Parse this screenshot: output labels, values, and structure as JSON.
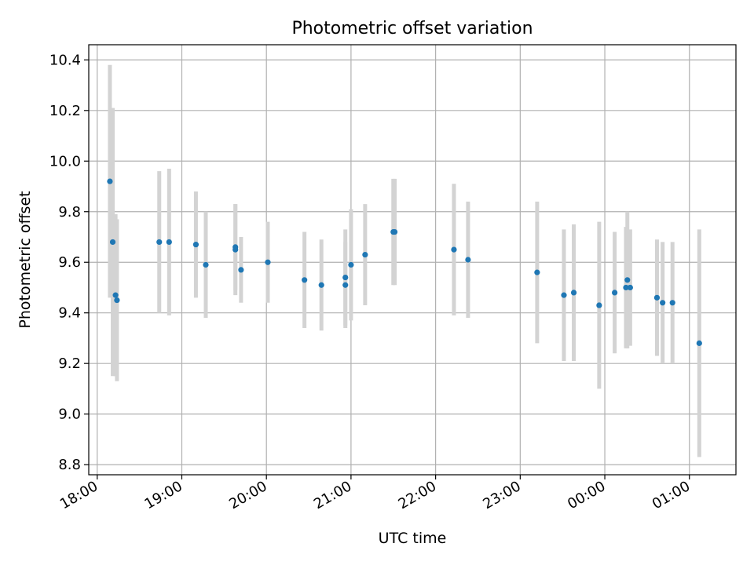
{
  "chart_data": {
    "type": "scatter",
    "title": "Photometric offset variation",
    "xlabel": "UTC time",
    "ylabel": "Photometric offset",
    "grid": true,
    "x_ticks": [
      "18:00",
      "19:00",
      "20:00",
      "21:00",
      "22:00",
      "23:00",
      "00:00",
      "01:00"
    ],
    "y_ticks": [
      "8.8",
      "9.0",
      "9.2",
      "9.4",
      "9.6",
      "9.8",
      "10.0",
      "10.2",
      "10.4"
    ],
    "xlim_hours": [
      17.9,
      25.55
    ],
    "ylim": [
      8.76,
      10.46
    ],
    "colors": {
      "points": "#1f77b4",
      "errorbars": "#d3d3d3",
      "grid": "#b0b0b0"
    },
    "points": [
      {
        "t": "18:09",
        "y": 9.92,
        "err": 0.46
      },
      {
        "t": "18:11",
        "y": 9.68,
        "err": 0.53
      },
      {
        "t": "18:13",
        "y": 9.47,
        "err": 0.32
      },
      {
        "t": "18:14",
        "y": 9.45,
        "err": 0.32
      },
      {
        "t": "18:44",
        "y": 9.68,
        "err": 0.28
      },
      {
        "t": "18:51",
        "y": 9.68,
        "err": 0.29
      },
      {
        "t": "19:10",
        "y": 9.67,
        "err": 0.21
      },
      {
        "t": "19:17",
        "y": 9.59,
        "err": 0.21
      },
      {
        "t": "19:38",
        "y": 9.65,
        "err": 0.18
      },
      {
        "t": "19:38",
        "y": 9.66,
        "err": 0.17
      },
      {
        "t": "19:42",
        "y": 9.57,
        "err": 0.13
      },
      {
        "t": "20:01",
        "y": 9.6,
        "err": 0.16
      },
      {
        "t": "20:27",
        "y": 9.53,
        "err": 0.19
      },
      {
        "t": "20:39",
        "y": 9.51,
        "err": 0.18
      },
      {
        "t": "20:56",
        "y": 9.54,
        "err": 0.19
      },
      {
        "t": "20:56",
        "y": 9.51,
        "err": 0.17
      },
      {
        "t": "21:00",
        "y": 9.59,
        "err": 0.22
      },
      {
        "t": "21:10",
        "y": 9.63,
        "err": 0.2
      },
      {
        "t": "21:30",
        "y": 9.72,
        "err": 0.21
      },
      {
        "t": "21:31",
        "y": 9.72,
        "err": 0.21
      },
      {
        "t": "22:13",
        "y": 9.65,
        "err": 0.26
      },
      {
        "t": "22:23",
        "y": 9.61,
        "err": 0.23
      },
      {
        "t": "23:12",
        "y": 9.56,
        "err": 0.28
      },
      {
        "t": "23:31",
        "y": 9.47,
        "err": 0.26
      },
      {
        "t": "23:38",
        "y": 9.48,
        "err": 0.27
      },
      {
        "t": "23:56",
        "y": 9.43,
        "err": 0.33
      },
      {
        "t": "00:07",
        "y": 9.48,
        "err": 0.24
      },
      {
        "t": "00:15",
        "y": 9.5,
        "err": 0.24
      },
      {
        "t": "00:16",
        "y": 9.53,
        "err": 0.27
      },
      {
        "t": "00:18",
        "y": 9.5,
        "err": 0.23
      },
      {
        "t": "00:37",
        "y": 9.46,
        "err": 0.23
      },
      {
        "t": "00:41",
        "y": 9.44,
        "err": 0.24
      },
      {
        "t": "00:48",
        "y": 9.44,
        "err": 0.24
      },
      {
        "t": "01:07",
        "y": 9.28,
        "err": 0.45
      }
    ]
  }
}
